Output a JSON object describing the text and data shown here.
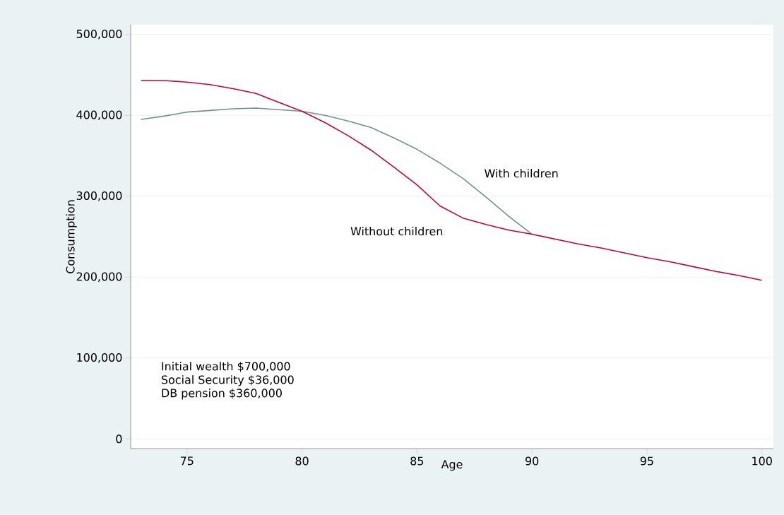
{
  "chart_data": {
    "type": "line",
    "xlabel": "Age",
    "ylabel": "Consumption",
    "x": [
      73,
      74,
      75,
      76,
      77,
      78,
      79,
      80,
      81,
      82,
      83,
      84,
      85,
      86,
      87,
      88,
      89,
      90,
      91,
      92,
      93,
      94,
      95,
      96,
      97,
      98,
      99,
      100
    ],
    "series": [
      {
        "name": "With children",
        "color": "#6f9585",
        "values": [
          395000,
          399000,
          404000,
          406000,
          408000,
          409000,
          407000,
          405000,
          400000,
          393000,
          385000,
          372000,
          358000,
          341000,
          322000,
          299000,
          275000,
          253000,
          null,
          null,
          null,
          null,
          null,
          null,
          null,
          null,
          null,
          null
        ]
      },
      {
        "name": "Without children",
        "color": "#c10534",
        "values": [
          443000,
          443000,
          441000,
          438000,
          433000,
          427000,
          416000,
          405000,
          391000,
          375000,
          357000,
          336000,
          314000,
          288000,
          273000,
          265000,
          258000,
          253000,
          247000,
          241000,
          236000,
          230000,
          224000,
          219000,
          213000,
          207000,
          202000,
          196000
        ]
      }
    ],
    "xlim": [
      72.55,
      100.5
    ],
    "ylim": [
      -12000,
      512000
    ],
    "xticks": [
      75,
      80,
      85,
      90,
      95,
      100
    ],
    "yticks": [
      {
        "value": 0,
        "label": "0"
      },
      {
        "value": 100000,
        "label": "100,000"
      },
      {
        "value": 200000,
        "label": "200,000"
      },
      {
        "value": 300000,
        "label": "300,000"
      },
      {
        "value": 400000,
        "label": "400,000"
      },
      {
        "value": 500000,
        "label": "500,000"
      }
    ],
    "grid": "y",
    "annotations": [
      "Initial wealth $700,000",
      "Social Security $36,000",
      "DB pension $360,000"
    ]
  }
}
